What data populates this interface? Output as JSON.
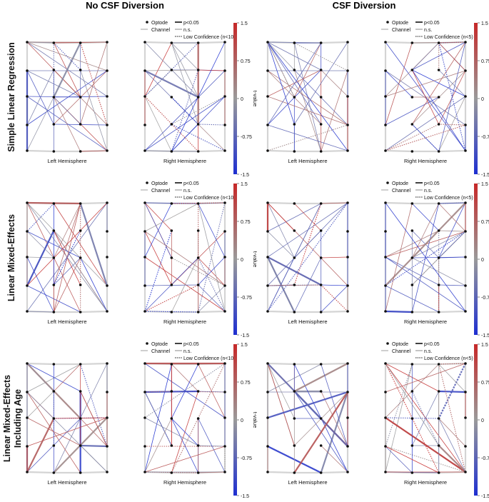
{
  "headers": {
    "no_csf": "No CSF Diversion",
    "csf": "CSF Diversion"
  },
  "row_labels": [
    {
      "line1": "Simple Linear Regression",
      "line2": ""
    },
    {
      "line1": "Linear Mixed-Effects",
      "line2": ""
    },
    {
      "line1": "Linear Mixed-Effects",
      "line2": "Including Age"
    }
  ],
  "hemisphere_labels": {
    "left": "Left Hemisphere",
    "right": "Right Hemisphere"
  },
  "legend": {
    "optode": "Optode",
    "channel": "Channel",
    "significant": "p<0.05",
    "ns": "n.s.",
    "low_conf_no_csf": "Low Confidence (n<10)",
    "low_conf_csf": "Low Confidence (n<5)"
  },
  "colorbar": {
    "label": "t-value",
    "ticks": [
      "1.5",
      "0.75",
      "0",
      "-0.75",
      "-1.5"
    ],
    "colors": {
      "high": "#c62828",
      "mid": "#9a9a9a",
      "low": "#1e2fd0"
    }
  }
}
